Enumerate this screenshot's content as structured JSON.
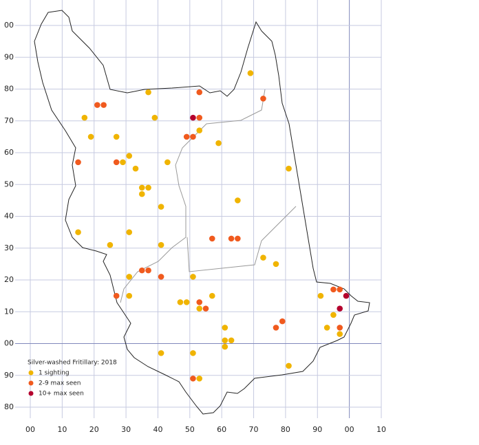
{
  "chart_data": {
    "type": "scatter",
    "legend_title": "Silver-washed Fritillary:  2018",
    "xlim": [
      0,
      110
    ],
    "ylim": [
      80,
      200
    ],
    "xticks": [
      {
        "value": 0,
        "label": "00"
      },
      10,
      20,
      30,
      40,
      50,
      60,
      70,
      80,
      90,
      {
        "value": 100,
        "label": "00"
      },
      {
        "value": 110,
        "label": "10"
      }
    ],
    "yticks": [
      80,
      90,
      {
        "value": 100,
        "label": "00"
      },
      {
        "value": 110,
        "label": "10"
      },
      {
        "value": 120,
        "label": "20"
      },
      {
        "value": 130,
        "label": "30"
      },
      {
        "value": 140,
        "label": "40"
      },
      {
        "value": 150,
        "label": "50"
      },
      {
        "value": 160,
        "label": "60"
      },
      {
        "value": 170,
        "label": "70"
      },
      {
        "value": 180,
        "label": "80"
      },
      {
        "value": 190,
        "label": "90"
      },
      {
        "value": 200,
        "label": "00"
      }
    ],
    "grid": true,
    "series": [
      {
        "name": "1 sighting",
        "color": "#f0b400",
        "x": [
          69,
          37,
          17,
          39,
          19,
          27,
          53,
          59,
          31,
          29,
          33,
          43,
          81,
          35,
          37,
          35,
          65,
          41,
          15,
          31,
          25,
          41,
          73,
          77,
          31,
          51,
          31,
          57,
          47,
          49,
          53,
          91,
          95,
          61,
          93,
          97,
          61,
          63,
          61,
          41,
          51,
          81,
          53
        ],
        "values": [
          185,
          179,
          171,
          171,
          165,
          165,
          167,
          163,
          159,
          157,
          155,
          157,
          155,
          149,
          149,
          147,
          145,
          143,
          135,
          135,
          131,
          131,
          127,
          125,
          121,
          121,
          115,
          115,
          113,
          113,
          111,
          115,
          109,
          105,
          105,
          103,
          101,
          101,
          99,
          97,
          97,
          93,
          89
        ]
      },
      {
        "name": "2-9 max seen",
        "color": "#f05a1e",
        "x": [
          53,
          73,
          21,
          23,
          53,
          49,
          51,
          15,
          27,
          57,
          63,
          65,
          35,
          37,
          41,
          27,
          53,
          55,
          79,
          77,
          95,
          97,
          97,
          51
        ],
        "values": [
          179,
          177,
          175,
          175,
          171,
          165,
          165,
          157,
          157,
          133,
          133,
          133,
          123,
          123,
          121,
          115,
          113,
          111,
          107,
          105,
          117,
          117,
          105,
          89
        ]
      },
      {
        "name": "10+ max seen",
        "color": "#b4002d",
        "x": [
          51,
          99,
          97
        ],
        "values": [
          171,
          115,
          111
        ]
      }
    ]
  }
}
